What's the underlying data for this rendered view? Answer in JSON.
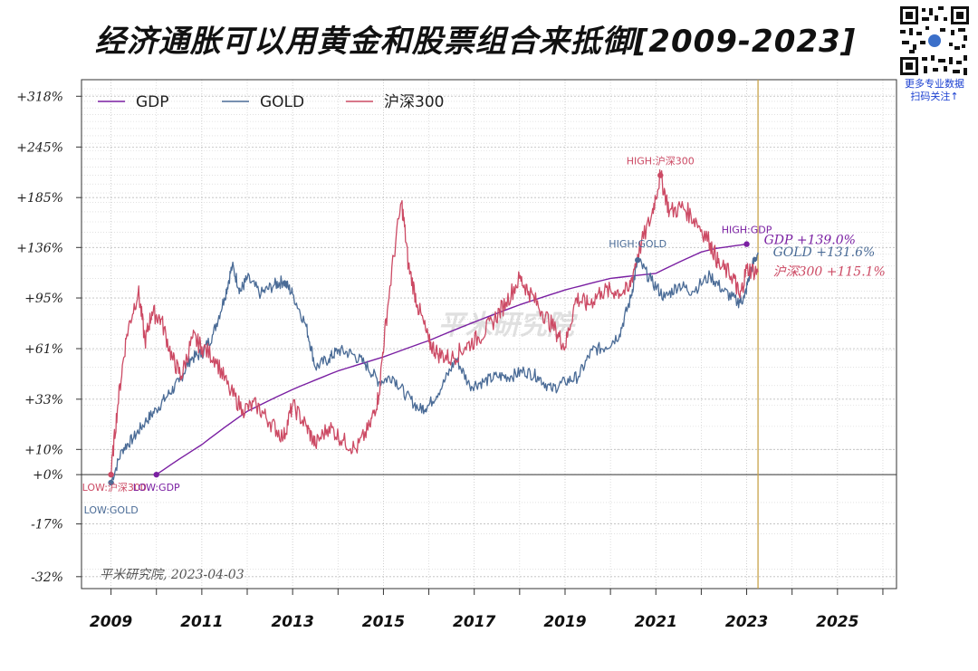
{
  "title": "经济通胀可以用黄金和股票组合来抵御[2009-2023]",
  "qr": {
    "caption_line1": "更多专业数据",
    "caption_line2": "扫码关注↑"
  },
  "colors": {
    "gdp": "#7a1fa2",
    "gold": "#4a6b96",
    "hs300": "#cc4a64",
    "vline": "#c9a34a",
    "grid": "#cfcfcf"
  },
  "chart_data": {
    "type": "line",
    "title": "经济通胀可以用黄金和股票组合来抵御[2009-2023]",
    "xlabel": "",
    "ylabel": "",
    "xlim": [
      2008.35,
      2026.3
    ],
    "x_ticks": [
      2009,
      2011,
      2013,
      2015,
      2017,
      2019,
      2021,
      2023,
      2025
    ],
    "x_minor_ticks": [
      2010,
      2012,
      2014,
      2016,
      2018,
      2020,
      2022,
      2024,
      2026
    ],
    "y_ticks": [
      "+318%",
      "+245%",
      "+185%",
      "+136%",
      "+95%",
      "+61%",
      "+33%",
      "+10%",
      "+0%",
      "-17%",
      "-32%"
    ],
    "y_scale": "log (percent change from base)",
    "ylim_percent": [
      -35,
      345
    ],
    "grid": true,
    "legend_position": "top-left",
    "reference_line_x": 2023.25,
    "series": [
      {
        "name": "GDP",
        "color": "#7a1fa2",
        "points": [
          [
            2010.0,
            0
          ],
          [
            2011.0,
            12
          ],
          [
            2012.0,
            27
          ],
          [
            2013.0,
            38
          ],
          [
            2014.0,
            48
          ],
          [
            2015.0,
            56
          ],
          [
            2016.0,
            66
          ],
          [
            2017.0,
            78
          ],
          [
            2018.0,
            90
          ],
          [
            2019.0,
            101
          ],
          [
            2020.0,
            110
          ],
          [
            2021.0,
            114
          ],
          [
            2022.0,
            132
          ],
          [
            2022.3,
            135
          ],
          [
            2023.0,
            139
          ]
        ]
      },
      {
        "name": "GOLD",
        "color": "#4a6b96",
        "points": [
          [
            2009.0,
            -3
          ],
          [
            2009.25,
            10
          ],
          [
            2009.5,
            15
          ],
          [
            2009.75,
            22
          ],
          [
            2010.0,
            28
          ],
          [
            2010.25,
            35
          ],
          [
            2010.5,
            42
          ],
          [
            2010.75,
            55
          ],
          [
            2011.0,
            58
          ],
          [
            2011.25,
            70
          ],
          [
            2011.5,
            95
          ],
          [
            2011.67,
            120
          ],
          [
            2011.85,
            100
          ],
          [
            2012.0,
            110
          ],
          [
            2012.3,
            98
          ],
          [
            2012.6,
            105
          ],
          [
            2012.8,
            108
          ],
          [
            2013.0,
            98
          ],
          [
            2013.3,
            75
          ],
          [
            2013.5,
            50
          ],
          [
            2013.8,
            55
          ],
          [
            2014.0,
            60
          ],
          [
            2014.3,
            58
          ],
          [
            2014.6,
            52
          ],
          [
            2014.9,
            42
          ],
          [
            2015.2,
            45
          ],
          [
            2015.5,
            35
          ],
          [
            2015.8,
            28
          ],
          [
            2016.0,
            30
          ],
          [
            2016.3,
            40
          ],
          [
            2016.6,
            55
          ],
          [
            2016.9,
            40
          ],
          [
            2017.2,
            42
          ],
          [
            2017.5,
            45
          ],
          [
            2017.8,
            45
          ],
          [
            2018.1,
            48
          ],
          [
            2018.4,
            45
          ],
          [
            2018.7,
            38
          ],
          [
            2019.0,
            42
          ],
          [
            2019.3,
            45
          ],
          [
            2019.6,
            60
          ],
          [
            2019.9,
            62
          ],
          [
            2020.2,
            70
          ],
          [
            2020.45,
            95
          ],
          [
            2020.6,
            125
          ],
          [
            2020.9,
            108
          ],
          [
            2021.2,
            95
          ],
          [
            2021.5,
            105
          ],
          [
            2021.8,
            100
          ],
          [
            2022.2,
            112
          ],
          [
            2022.5,
            100
          ],
          [
            2022.8,
            92
          ],
          [
            2022.95,
            95
          ],
          [
            2023.1,
            118
          ],
          [
            2023.25,
            131.6
          ]
        ]
      },
      {
        "name": "沪深300",
        "color": "#cc4a64",
        "points": [
          [
            2009.0,
            0
          ],
          [
            2009.15,
            30
          ],
          [
            2009.35,
            70
          ],
          [
            2009.6,
            100
          ],
          [
            2009.75,
            65
          ],
          [
            2009.9,
            85
          ],
          [
            2010.1,
            80
          ],
          [
            2010.35,
            55
          ],
          [
            2010.55,
            45
          ],
          [
            2010.8,
            68
          ],
          [
            2011.0,
            62
          ],
          [
            2011.3,
            55
          ],
          [
            2011.6,
            38
          ],
          [
            2011.9,
            28
          ],
          [
            2012.2,
            30
          ],
          [
            2012.5,
            22
          ],
          [
            2012.8,
            15
          ],
          [
            2013.0,
            30
          ],
          [
            2013.3,
            20
          ],
          [
            2013.5,
            12
          ],
          [
            2013.8,
            20
          ],
          [
            2014.1,
            14
          ],
          [
            2014.4,
            10
          ],
          [
            2014.7,
            20
          ],
          [
            2014.9,
            35
          ],
          [
            2015.1,
            90
          ],
          [
            2015.4,
            180
          ],
          [
            2015.55,
            120
          ],
          [
            2015.75,
            90
          ],
          [
            2016.0,
            65
          ],
          [
            2016.2,
            58
          ],
          [
            2016.5,
            55
          ],
          [
            2016.8,
            62
          ],
          [
            2017.1,
            68
          ],
          [
            2017.4,
            78
          ],
          [
            2017.7,
            92
          ],
          [
            2018.0,
            110
          ],
          [
            2018.2,
            100
          ],
          [
            2018.5,
            85
          ],
          [
            2018.8,
            72
          ],
          [
            2019.0,
            62
          ],
          [
            2019.25,
            95
          ],
          [
            2019.5,
            90
          ],
          [
            2019.8,
            100
          ],
          [
            2020.1,
            100
          ],
          [
            2020.4,
            100
          ],
          [
            2020.6,
            130
          ],
          [
            2020.9,
            165
          ],
          [
            2021.1,
            210
          ],
          [
            2021.3,
            170
          ],
          [
            2021.6,
            175
          ],
          [
            2021.9,
            160
          ],
          [
            2022.2,
            140
          ],
          [
            2022.4,
            120
          ],
          [
            2022.7,
            112
          ],
          [
            2022.85,
            95
          ],
          [
            2023.0,
            118
          ],
          [
            2023.25,
            115.1
          ]
        ]
      }
    ],
    "annotations": {
      "low_hs300": "LOW:沪深300",
      "low_gdp": "LOW:GDP",
      "low_gold": "LOW:GOLD",
      "high_hs300": "HIGH:沪深300",
      "high_gold": "HIGH:GOLD",
      "high_gdp": "HIGH:GDP",
      "end_gdp": "GDP +139.0%",
      "end_gold": "GOLD +131.6%",
      "end_hs300": "沪深300 +115.1%"
    },
    "watermark": "平米研究院",
    "credit": "平米研究院, 2023-04-03"
  }
}
